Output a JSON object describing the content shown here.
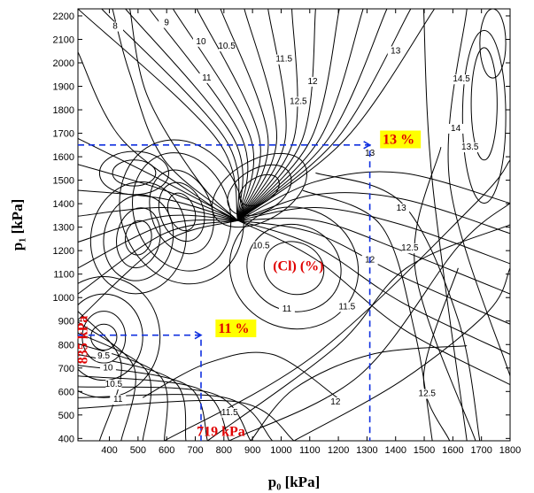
{
  "chart_data": {
    "type": "contour",
    "title": "",
    "xlabel": "p₀ [kPa]",
    "ylabel": "p₁ [kPa]",
    "xlim": [
      290,
      1800
    ],
    "ylim": [
      390,
      2230
    ],
    "xticks": [
      400,
      500,
      600,
      700,
      800,
      900,
      1000,
      1100,
      1200,
      1300,
      1400,
      1500,
      1600,
      1700,
      1800
    ],
    "yticks": [
      400,
      500,
      600,
      700,
      800,
      900,
      1000,
      1100,
      1200,
      1300,
      1400,
      1500,
      1600,
      1700,
      1800,
      1900,
      2000,
      2100,
      2200
    ],
    "grid": false,
    "colors": {
      "contour": "#000000",
      "guide_lines": "#1030e0",
      "annotation_text": "#e00000",
      "highlight": "#ffff00"
    },
    "variable_label": "(Cl) (%)",
    "contour_labels": [
      {
        "text": "8",
        "x": 420,
        "y": 2145
      },
      {
        "text": "9",
        "x": 600,
        "y": 2160
      },
      {
        "text": "10",
        "x": 720,
        "y": 2080
      },
      {
        "text": "10.5",
        "x": 810,
        "y": 2060
      },
      {
        "text": "11",
        "x": 740,
        "y": 1925
      },
      {
        "text": "11.5",
        "x": 1010,
        "y": 2005
      },
      {
        "text": "12",
        "x": 1110,
        "y": 1910
      },
      {
        "text": "12.5",
        "x": 1060,
        "y": 1825
      },
      {
        "text": "13",
        "x": 1400,
        "y": 2040
      },
      {
        "text": "13",
        "x": 1310,
        "y": 1605
      },
      {
        "text": "13",
        "x": 1420,
        "y": 1370
      },
      {
        "text": "14.5",
        "x": 1630,
        "y": 1920
      },
      {
        "text": "14",
        "x": 1610,
        "y": 1710
      },
      {
        "text": "13.5",
        "x": 1660,
        "y": 1630
      },
      {
        "text": "12.5",
        "x": 1450,
        "y": 1200
      },
      {
        "text": "12",
        "x": 1310,
        "y": 1150
      },
      {
        "text": "11.5",
        "x": 1230,
        "y": 950
      },
      {
        "text": "12",
        "x": 1190,
        "y": 545
      },
      {
        "text": "12.5",
        "x": 1510,
        "y": 580
      },
      {
        "text": "11.5",
        "x": 820,
        "y": 500
      },
      {
        "text": "10.5",
        "x": 930,
        "y": 1210
      },
      {
        "text": "11",
        "x": 1020,
        "y": 940
      },
      {
        "text": "9.5",
        "x": 380,
        "y": 740
      },
      {
        "text": "10",
        "x": 395,
        "y": 690
      },
      {
        "text": "10.5",
        "x": 415,
        "y": 620
      },
      {
        "text": "11",
        "x": 430,
        "y": 555
      }
    ],
    "guide_lines": [
      {
        "path": [
          [
            290,
            1650
          ],
          [
            1310,
            1650
          ],
          [
            1310,
            390
          ]
        ]
      },
      {
        "path": [
          [
            290,
            840
          ],
          [
            720,
            840
          ],
          [
            720,
            390
          ]
        ]
      }
    ],
    "annotations": [
      {
        "text": "13 %",
        "x": 1355,
        "y": 1655,
        "color": "#e00000",
        "background": "#ffff00"
      },
      {
        "text": "11 %",
        "x": 780,
        "y": 850,
        "color": "#e00000",
        "background": "#ffff00"
      },
      {
        "text": "835 kPa",
        "x": 322,
        "y": 820,
        "color": "#e00000",
        "rotation": -90
      },
      {
        "text": "719 kPa",
        "x": 705,
        "y": 410,
        "color": "#e00000"
      }
    ]
  }
}
